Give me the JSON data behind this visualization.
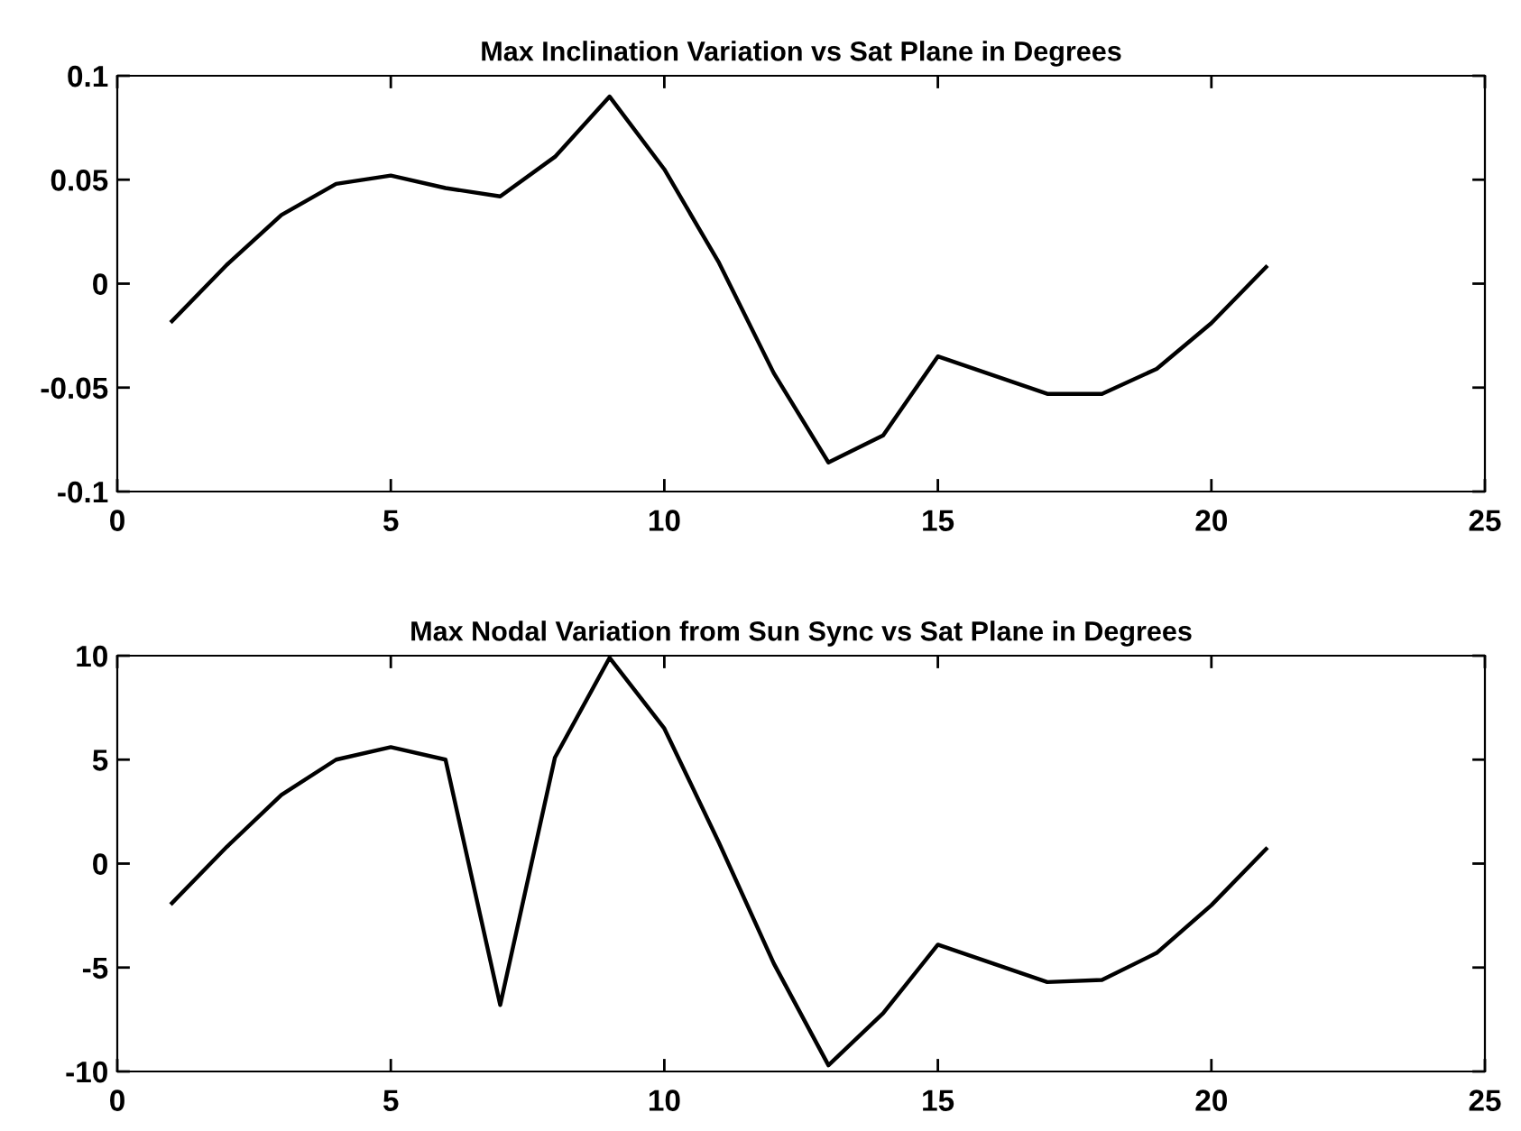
{
  "chart_data": [
    {
      "type": "line",
      "title": "Max Inclination Variation vs Sat Plane in Degrees",
      "x": [
        1,
        2,
        3,
        4,
        5,
        6,
        7,
        8,
        9,
        10,
        11,
        12,
        13,
        14,
        15,
        16,
        17,
        18,
        19,
        20,
        21
      ],
      "series": [
        {
          "color": "#000000",
          "values": [
            -0.018,
            0.009,
            0.033,
            0.048,
            0.052,
            0.046,
            0.042,
            0.061,
            0.09,
            0.055,
            0.01,
            -0.043,
            -0.086,
            -0.073,
            -0.035,
            -0.044,
            -0.053,
            -0.053,
            -0.041,
            -0.019,
            0.008
          ]
        }
      ],
      "xlim": [
        0,
        25
      ],
      "xticks": [
        0,
        5,
        10,
        15,
        20,
        25
      ],
      "ylim": [
        -0.1,
        0.1
      ],
      "yticks": [
        -0.1,
        -0.05,
        0,
        0.05,
        0.1
      ],
      "grid": false
    },
    {
      "type": "line",
      "title": "Max Nodal Variation from Sun Sync vs Sat Plane in Degrees",
      "x": [
        1,
        2,
        3,
        4,
        5,
        6,
        7,
        8,
        9,
        10,
        11,
        12,
        13,
        14,
        15,
        16,
        17,
        18,
        19,
        20,
        21
      ],
      "series": [
        {
          "color": "#000000",
          "values": [
            -1.9,
            0.8,
            3.3,
            5.0,
            5.6,
            5.0,
            -6.8,
            5.1,
            9.9,
            6.5,
            1.0,
            -4.8,
            -9.7,
            -7.2,
            -3.9,
            -4.8,
            -5.7,
            -5.6,
            -4.3,
            -2.0,
            0.7
          ]
        }
      ],
      "xlim": [
        0,
        25
      ],
      "xticks": [
        0,
        5,
        10,
        15,
        20,
        25
      ],
      "ylim": [
        -10,
        10
      ],
      "yticks": [
        -10,
        -5,
        0,
        5,
        10
      ],
      "grid": false
    }
  ]
}
